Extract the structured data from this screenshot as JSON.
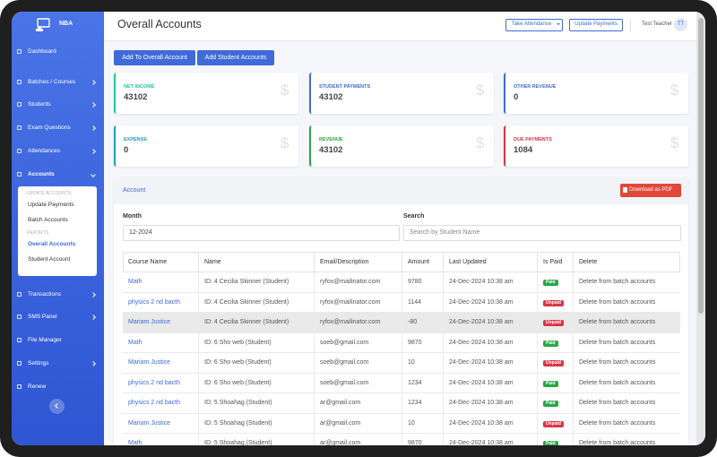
{
  "sidebar": {
    "brand": "NBA",
    "menu_top": [
      "Dashboard",
      "Batches / Courses",
      "Students",
      "Exam Questions",
      "Attendances",
      "Accounts"
    ],
    "submenu": [
      {
        "heading": "UPDATE ACCOUNTS",
        "items": [
          "Update Payments",
          "Batch Accounts"
        ]
      },
      {
        "heading": "REPORTS",
        "items": [
          "Overall Accounts",
          "Student Account"
        ]
      }
    ],
    "menu_bottom": [
      "Transactions",
      "SMS Panel",
      "File Manager",
      "Settings",
      "Renew"
    ]
  },
  "header": {
    "title": "Overall Accounts",
    "buttons": [
      "Take Attendance",
      "Update Payments"
    ],
    "user": "Test Teacher",
    "avatar": "TT"
  },
  "actions": [
    "Add To Overall Account",
    "Add Student Accounts"
  ],
  "currency_icon": "$",
  "cards": [
    {
      "label": "NET INCOME",
      "value": 43102
    },
    {
      "label": "STUDENT PAYMENTS",
      "value": 43102
    },
    {
      "label": "OTHER REVENUE",
      "value": 0
    },
    {
      "label": "EXPENSE",
      "value": 0
    },
    {
      "label": "REVENUE",
      "value": 43102
    },
    {
      "label": "DUE PAYMENTS",
      "value": 1084
    }
  ],
  "panel": {
    "title": "Account",
    "download": "Download as PDF",
    "month_label": "Month",
    "month_value": "12-2024",
    "search_label": "Search",
    "search_placeholder": "Search by Student Name"
  },
  "table": {
    "columns": [
      "Course Name",
      "Name",
      "Email/Description",
      "Amount",
      "Last Updated",
      "Is Paid",
      "Delete"
    ],
    "rows": [
      [
        "Math",
        "ID: 4 Cecilia Skinner (Student)",
        "ryfox@mailinator.com",
        9780,
        "24-Dec-2024 10:38 am",
        "Paid",
        "Delete from batch accounts"
      ],
      [
        "physics 2 nd bacth",
        "ID: 4 Cecilia Skinner (Student)",
        "ryfox@mailinator.com",
        1144,
        "24-Dec-2024 10:38 am",
        "Unpaid",
        "Delete from batch accounts"
      ],
      [
        "Mariam Justice",
        "ID: 4 Cecilia Skinner (Student)",
        "ryfox@mailinator.com",
        -80,
        "24-Dec-2024 10:38 am",
        "Unpaid",
        "Delete from batch accounts"
      ],
      [
        "Math",
        "ID: 6 Sho web (Student)",
        "soeb@gmail.com",
        9870,
        "24-Dec-2024 10:38 am",
        "Paid",
        "Delete from batch accounts"
      ],
      [
        "Mariam Justice",
        "ID: 6 Sho web (Student)",
        "soeb@gmail.com",
        10,
        "24-Dec-2024 10:38 am",
        "Unpaid",
        "Delete from batch accounts"
      ],
      [
        "physics 2 nd bacth",
        "ID: 6 Sho web (Student)",
        "soeb@gmail.com",
        1234,
        "24-Dec-2024 10:38 am",
        "Paid",
        "Delete from batch accounts"
      ],
      [
        "physics 2 nd bacth",
        "ID: 5 Shoahag (Student)",
        "ar@gmail.com",
        1234,
        "24-Dec-2024 10:38 am",
        "Paid",
        "Delete from batch accounts"
      ],
      [
        "Mariam Justice",
        "ID: 5 Shoahag (Student)",
        "ar@gmail.com",
        10,
        "24-Dec-2024 10:38 am",
        "Unpaid",
        "Delete from batch accounts"
      ],
      [
        "Math",
        "ID: 5 Shoahag (Student)",
        "ar@gmail.com",
        9870,
        "24-Dec-2024 10:38 am",
        "Paid",
        "Delete from batch accounts"
      ]
    ]
  }
}
